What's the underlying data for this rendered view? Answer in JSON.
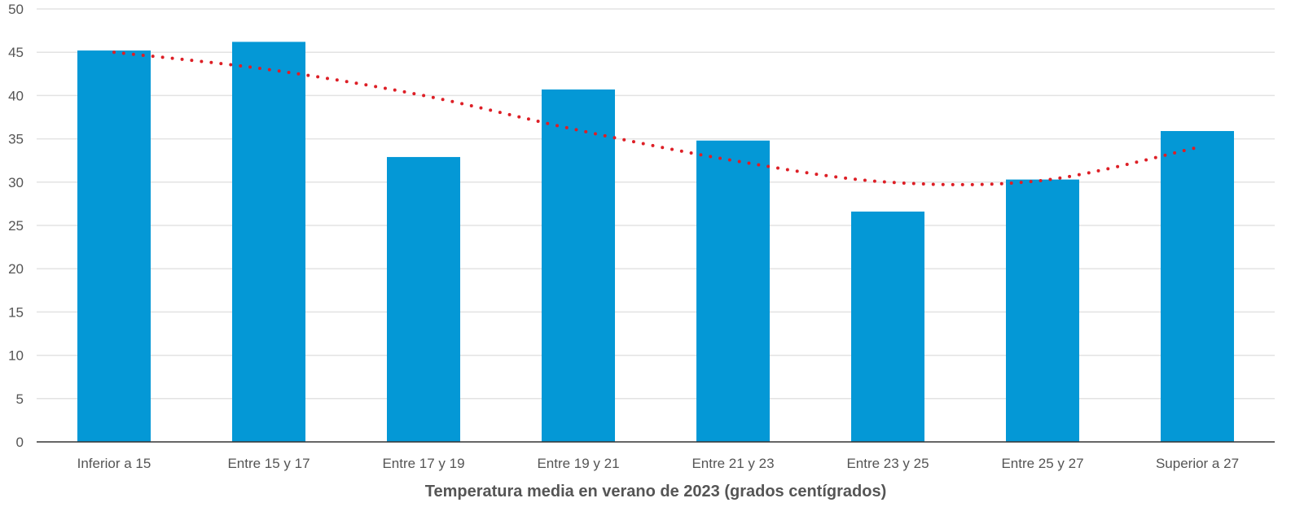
{
  "chart_data": {
    "type": "bar",
    "title": "",
    "xlabel": "Temperatura media en verano de 2023 (grados centígrados)",
    "ylabel": "",
    "ylim": [
      0,
      50
    ],
    "yticks": [
      0,
      5,
      10,
      15,
      20,
      25,
      30,
      35,
      40,
      45,
      50
    ],
    "grid": true,
    "legend": "none",
    "categories": [
      "Inferior a 15",
      "Entre 15 y 17",
      "Entre 17 y 19",
      "Entre 19 y 21",
      "Entre 21 y 23",
      "Entre 23 y 25",
      "Entre 25 y 27",
      "Superior a 27"
    ],
    "values": [
      45.2,
      46.2,
      32.9,
      40.7,
      34.8,
      26.6,
      30.3,
      35.9
    ],
    "trendline": {
      "style": "dotted",
      "values": [
        45.0,
        43.0,
        40.0,
        36.0,
        32.5,
        30.0,
        30.2,
        34.0
      ]
    },
    "colors": {
      "bar": "#0498d6",
      "trend": "#dd1f26",
      "grid": "#e3e3e3",
      "axis": "#333333",
      "text": "#555555"
    }
  }
}
